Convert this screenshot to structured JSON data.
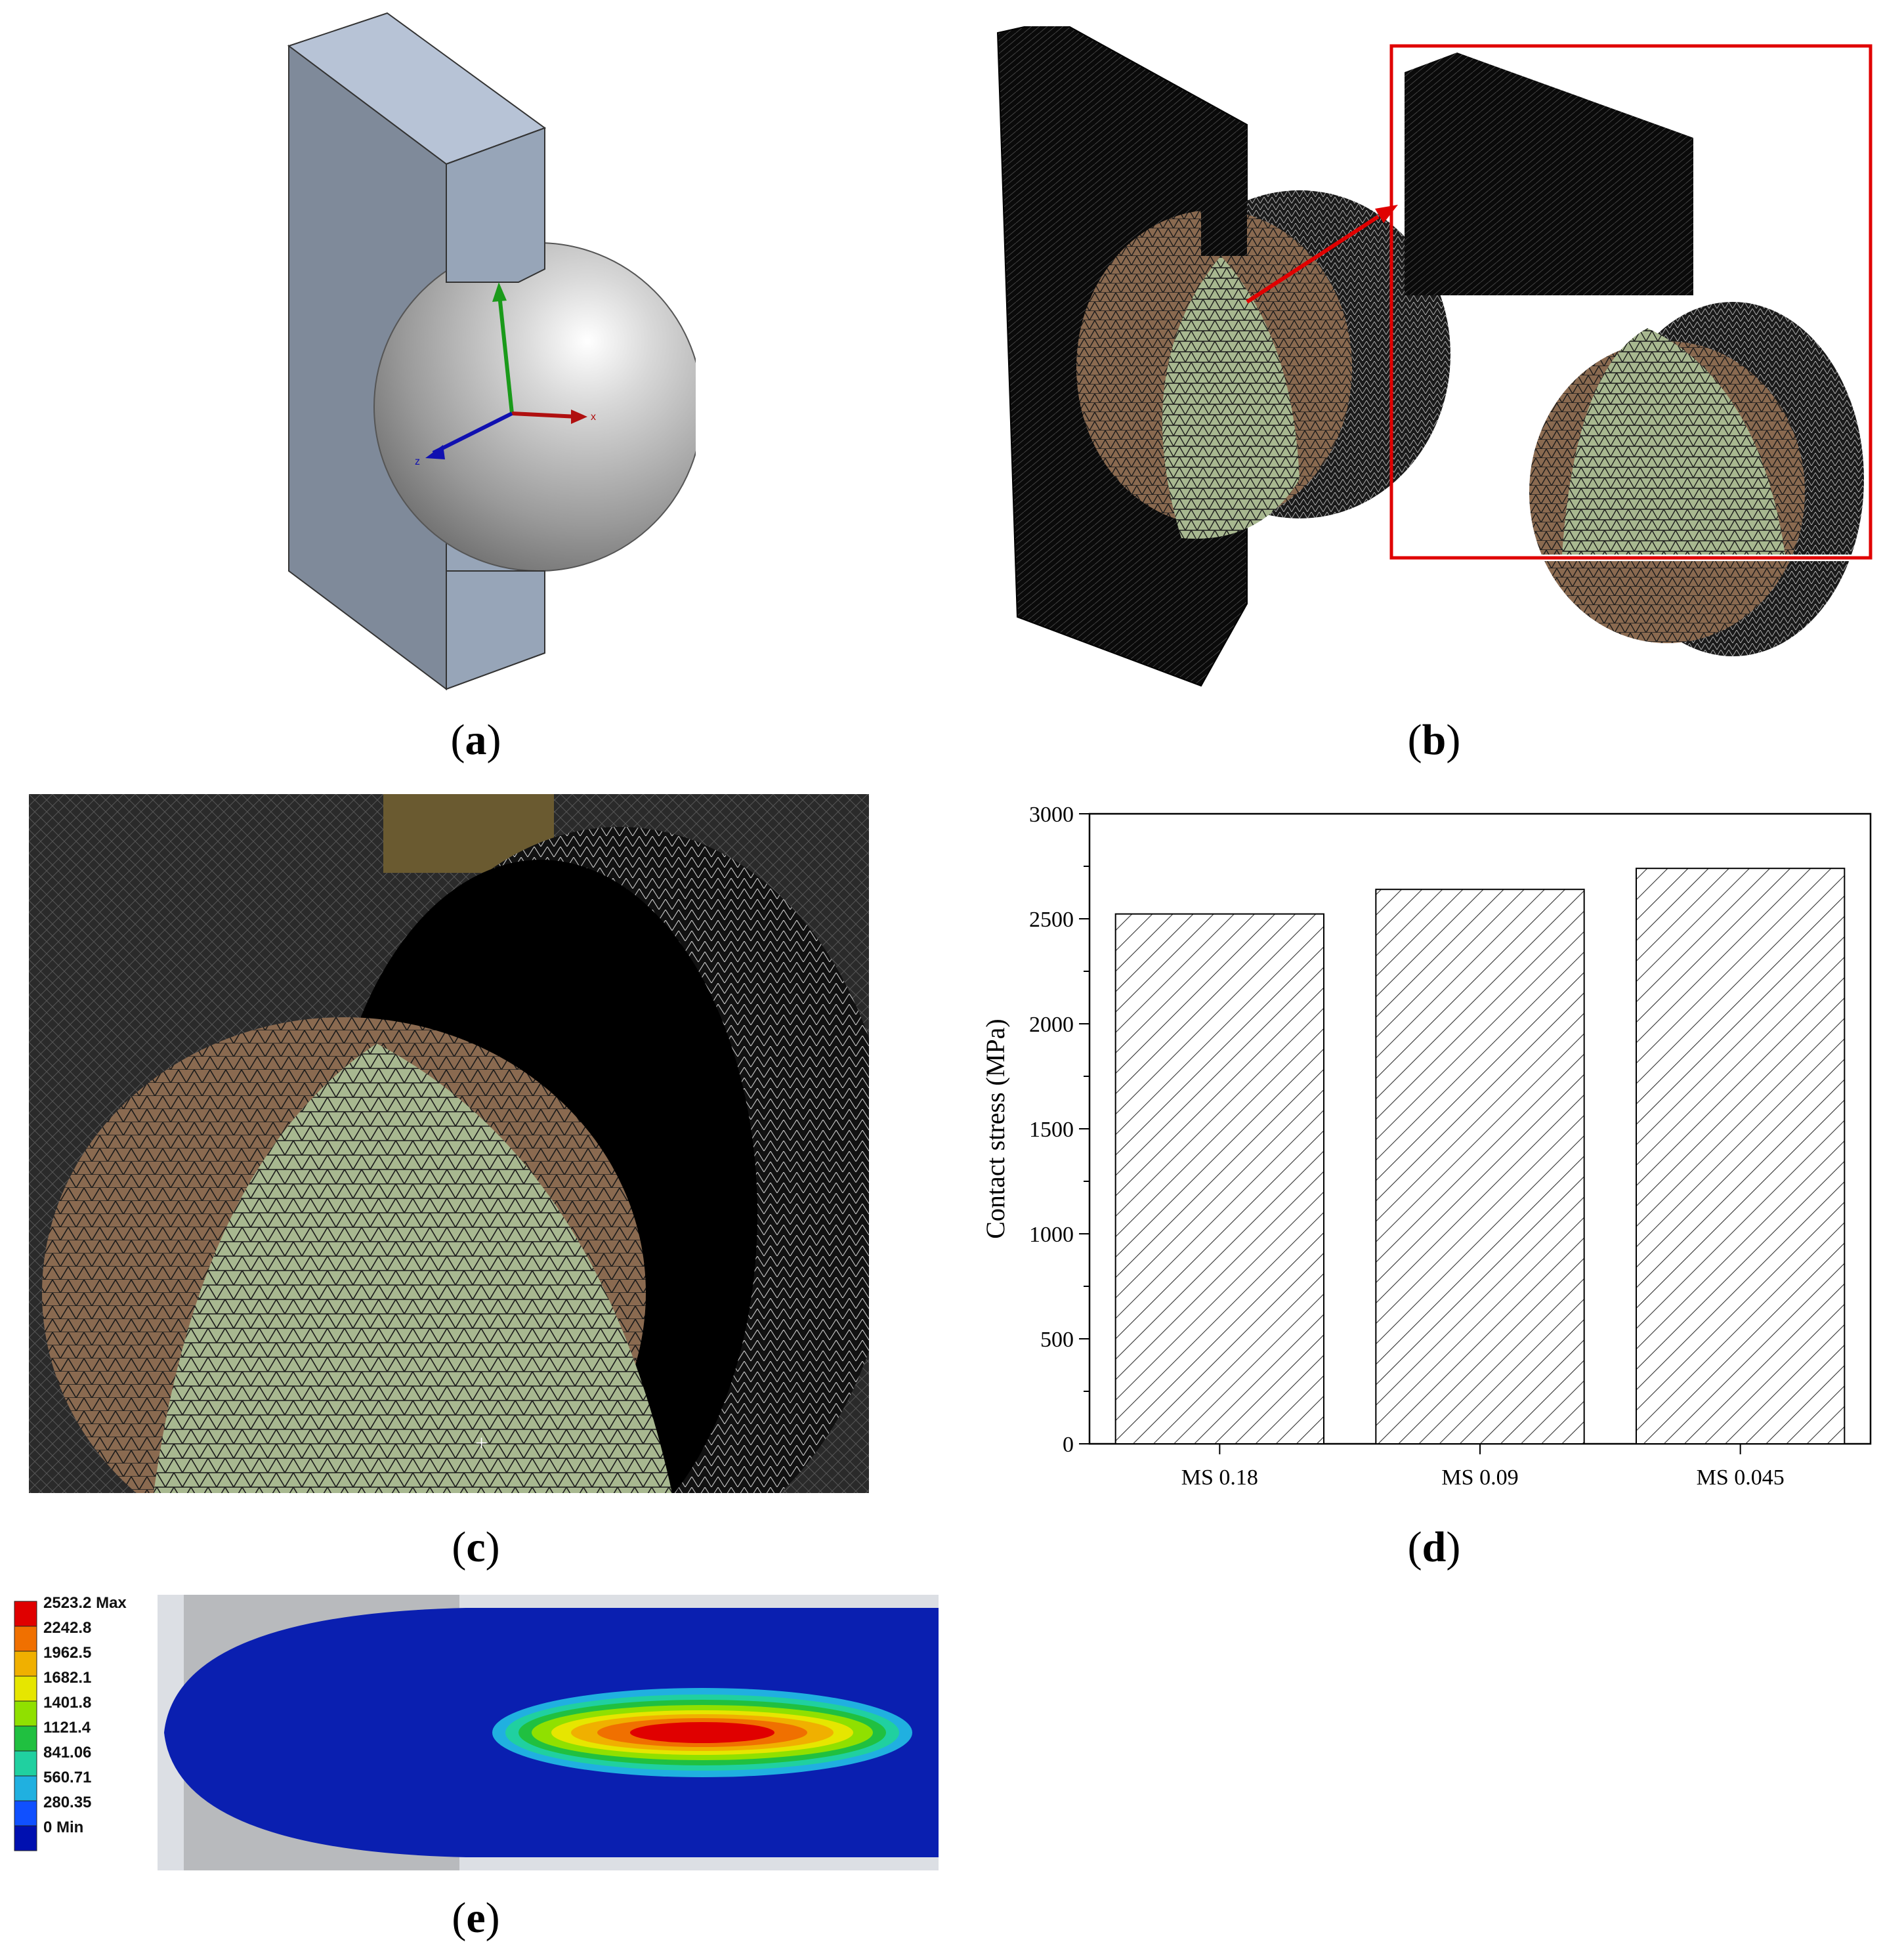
{
  "captions": {
    "a": "a",
    "b": "b",
    "c": "c",
    "d": "d",
    "e": "e"
  },
  "panel_a": {
    "axis_labels": {
      "x": "x",
      "z": "z"
    }
  },
  "panel_e": {
    "legend": [
      {
        "label": "2523.2 Max",
        "color": "#e00000"
      },
      {
        "label": "2242.8",
        "color": "#f07000"
      },
      {
        "label": "1962.5",
        "color": "#f0b000"
      },
      {
        "label": "1682.1",
        "color": "#e6e600"
      },
      {
        "label": "1401.8",
        "color": "#90e000"
      },
      {
        "label": "1121.4",
        "color": "#20c040"
      },
      {
        "label": "841.06",
        "color": "#20d0a0"
      },
      {
        "label": "560.71",
        "color": "#20b0e0"
      },
      {
        "label": "280.35",
        "color": "#1050ff"
      },
      {
        "label": "0 Min",
        "color": "#0010b0"
      }
    ]
  },
  "chart_data": {
    "type": "bar",
    "categories": [
      "MS 0.18",
      "MS 0.09",
      "MS 0.045"
    ],
    "values": [
      2523,
      2640,
      2740
    ],
    "title": "",
    "xlabel": "",
    "ylabel": "Contact stress (MPa)",
    "ylim": [
      0,
      3000
    ],
    "yticks": [
      0,
      500,
      1000,
      1500,
      2000,
      2500,
      3000
    ],
    "bar_fill": "hatched",
    "grid": false
  },
  "colors": {
    "plate": "#7f8a9a",
    "plate_top": "#b7c3d6",
    "plate_side": "#97a5b8",
    "mesh_dark": "#0a0a0a",
    "mesh_green": "#a8b890",
    "mesh_brown": "#8a6a50",
    "highlight_box": "#e00000"
  }
}
